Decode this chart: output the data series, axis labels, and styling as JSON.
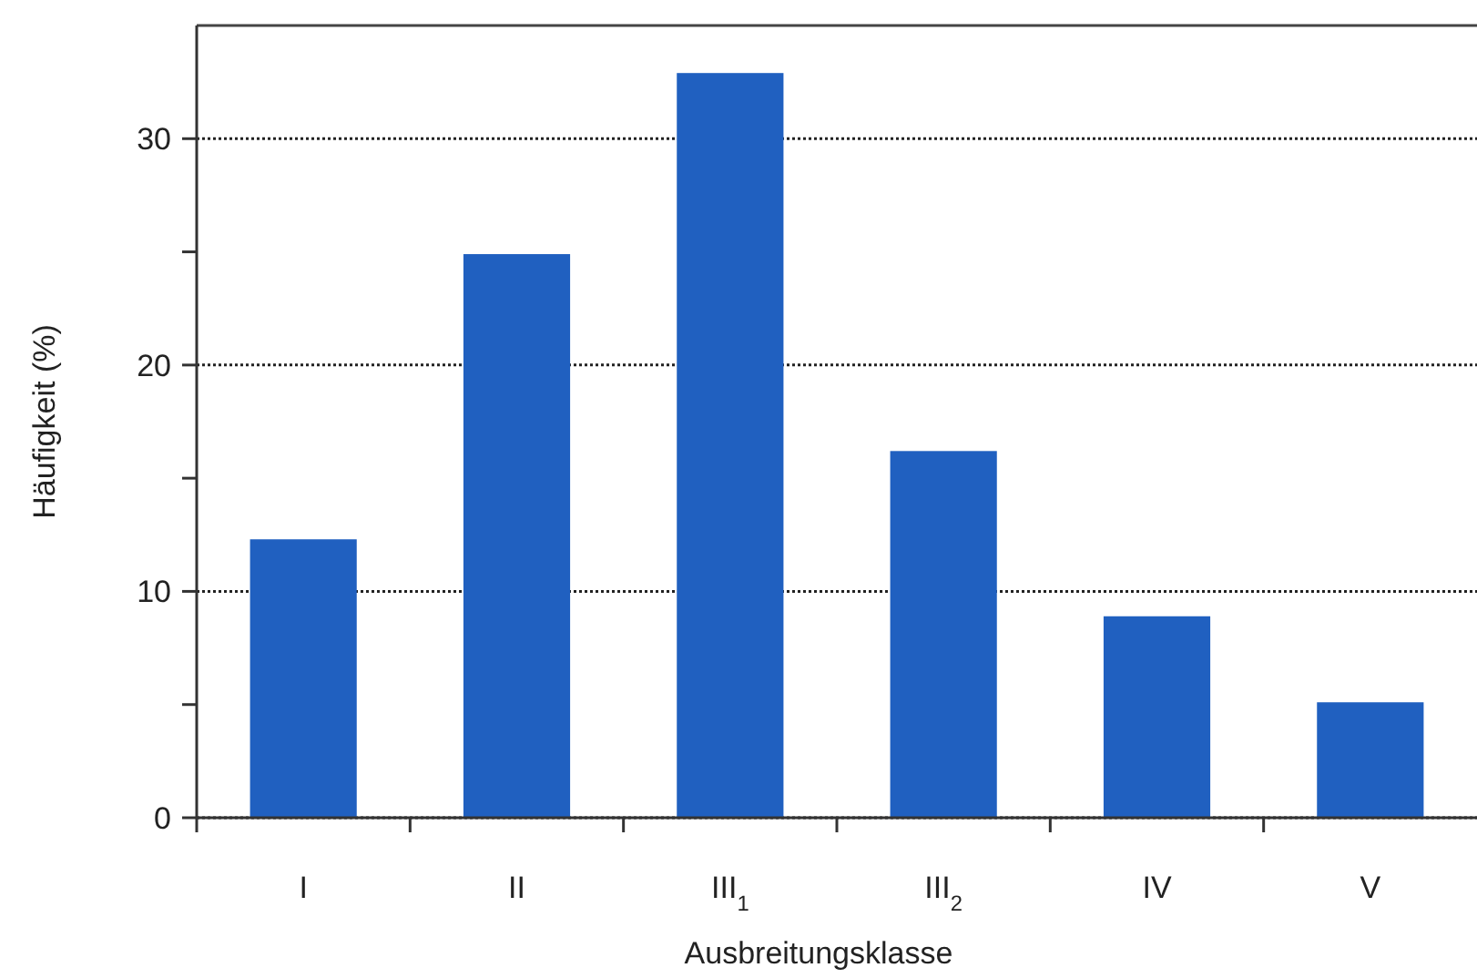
{
  "chart_data": {
    "type": "bar",
    "xlabel": "Ausbreitungsklasse",
    "ylabel": "Häufigkeit (%)",
    "categories": [
      "I",
      "II",
      "III$_{1}$",
      "III$_{2}$",
      "IV",
      "V"
    ],
    "values": [
      12.3,
      24.9,
      32.9,
      16.2,
      8.9,
      5.1
    ],
    "color": "#2060c0",
    "ylim": [
      0,
      35
    ],
    "yticks": [
      0,
      {
        "value": 5,
        "label": null
      },
      10,
      {
        "value": 15,
        "label": null
      },
      20,
      {
        "value": 25,
        "label": null
      },
      30
    ],
    "grid": "y"
  }
}
